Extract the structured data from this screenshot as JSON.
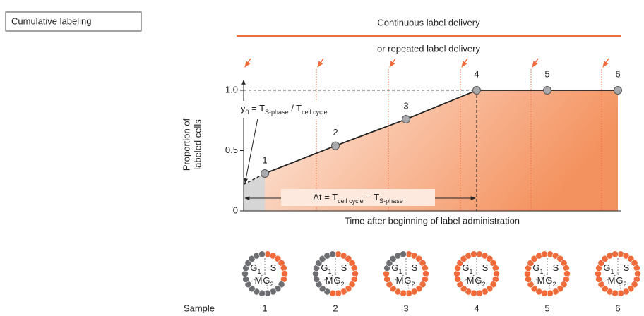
{
  "chart_data": {
    "type": "line",
    "label_box": "Cumulative labeling",
    "header_lines": [
      "Continuous label delivery",
      "or repeated label delivery"
    ],
    "ylabel": [
      "Proportion of",
      "labeled cells"
    ],
    "xlabel": "Time after beginning of label administration",
    "x": [
      0.3,
      1.3,
      2.3,
      3.3,
      4.3,
      5.3
    ],
    "values": [
      0.31,
      0.54,
      0.76,
      1.0,
      1.0,
      1.0
    ],
    "point_labels": [
      "1",
      "2",
      "3",
      "4",
      "5",
      "6"
    ],
    "color": "#222222",
    "point_color": "#a7a9ac",
    "fill_color": "#f37e4c",
    "unlabeled_color": "#d6d6d6",
    "xlim": [
      0,
      5.35
    ],
    "ylim": [
      0,
      1.05
    ],
    "yticks": [
      0,
      0.5,
      {
        "value": 1,
        "label": "1.0"
      }
    ],
    "intercept": 0.22,
    "y0_equation": [
      "y",
      "0",
      " = T",
      "S-phase",
      " / T",
      "cell cycle"
    ],
    "dt_equation": [
      "Δt = T",
      "cell cycle",
      " − T",
      "S-phase"
    ],
    "delivery_times": [
      0,
      1.03,
      2.05,
      3.07,
      4.07,
      5.07
    ],
    "delivery_color": "#f06a3a",
    "sample_label": "Sample",
    "samples": [
      "1",
      "2",
      "3",
      "4",
      "5",
      "6"
    ],
    "phase_labels": [
      {
        "text": "G",
        "sub": "1"
      },
      {
        "text": "S"
      },
      {
        "text": "M"
      },
      {
        "text": "G",
        "sub": "2"
      }
    ],
    "cell_colors": {
      "labeled": "#f06a3a",
      "unlabeled": "#6d6e71"
    }
  }
}
